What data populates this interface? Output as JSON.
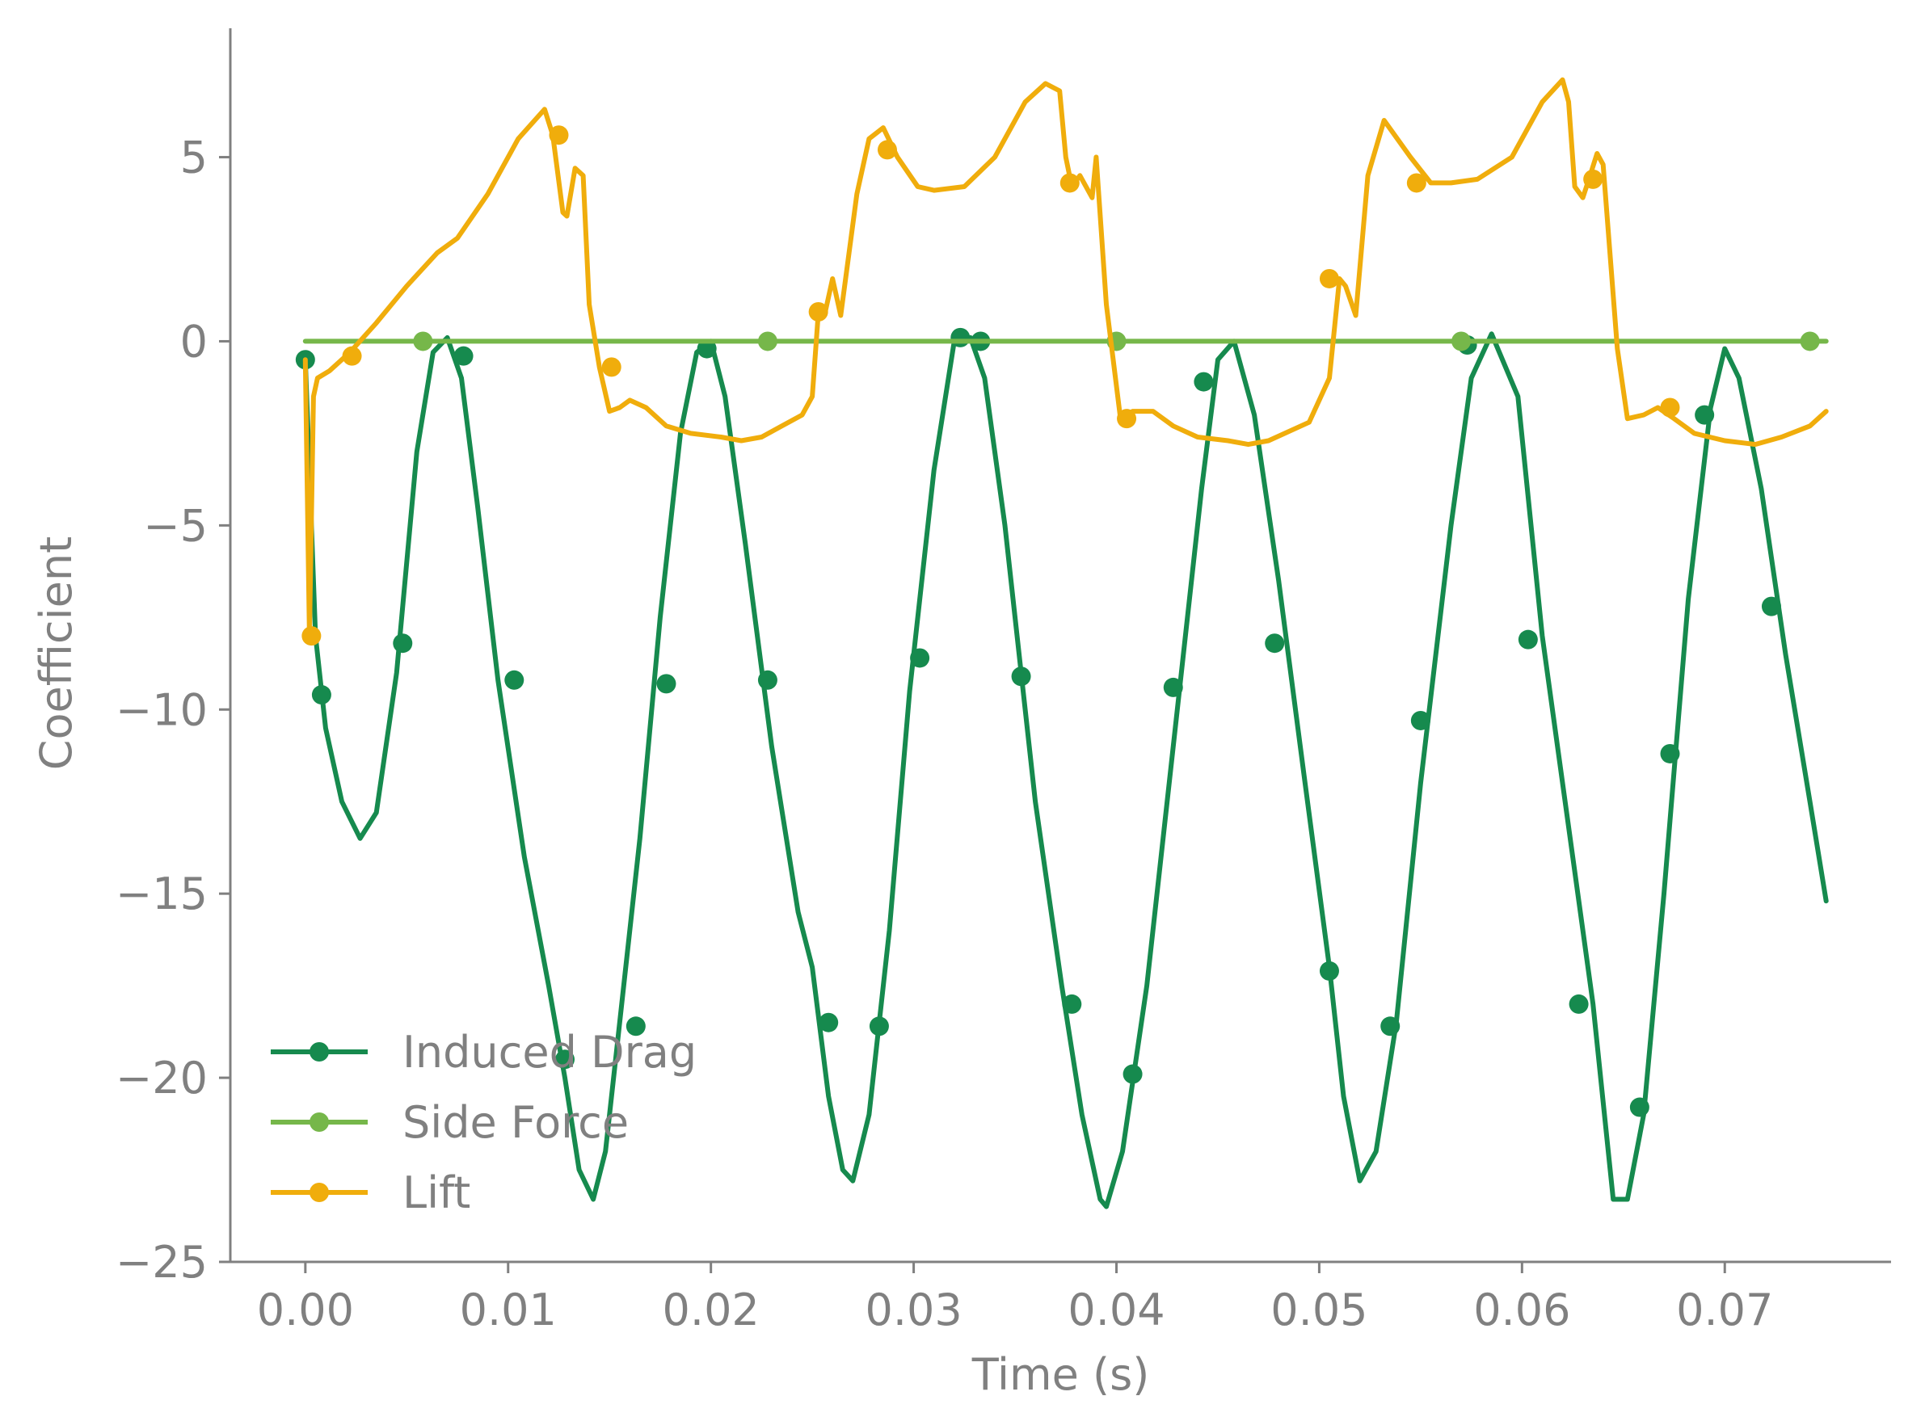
{
  "chart_data": {
    "type": "line",
    "title": "",
    "xlabel": "Time (s)",
    "ylabel": "Coefficient",
    "xlim": [
      -0.0037,
      0.0782
    ],
    "ylim": [
      -25,
      8.5
    ],
    "xticks": [
      0.0,
      0.01,
      0.02,
      0.03,
      0.04,
      0.05,
      0.06,
      0.07
    ],
    "xtick_labels": [
      "0.00",
      "0.01",
      "0.02",
      "0.03",
      "0.04",
      "0.05",
      "0.06",
      "0.07"
    ],
    "yticks": [
      -25,
      -20,
      -15,
      -10,
      -5,
      0,
      5
    ],
    "ytick_labels": [
      "−25",
      "−20",
      "−15",
      "−10",
      "−5",
      "0",
      "5"
    ],
    "grid": false,
    "legend_position": "lower-left",
    "series": [
      {
        "name": "Induced Drag",
        "color": "#168a4e",
        "x": [
          0.0,
          0.0005,
          0.001,
          0.0018,
          0.0027,
          0.0035,
          0.0045,
          0.0055,
          0.0063,
          0.007,
          0.0077,
          0.0085,
          0.0095,
          0.0108,
          0.012,
          0.0128,
          0.0135,
          0.0142,
          0.0148,
          0.0155,
          0.0165,
          0.0175,
          0.0185,
          0.0193,
          0.02,
          0.0207,
          0.0217,
          0.023,
          0.0243,
          0.025,
          0.0258,
          0.0265,
          0.027,
          0.0278,
          0.0288,
          0.0298,
          0.031,
          0.032,
          0.0328,
          0.0335,
          0.0345,
          0.036,
          0.0373,
          0.0383,
          0.0392,
          0.0395,
          0.0403,
          0.0415,
          0.043,
          0.0442,
          0.045,
          0.0458,
          0.0468,
          0.048,
          0.0493,
          0.0505,
          0.0512,
          0.052,
          0.0528,
          0.0538,
          0.055,
          0.0565,
          0.0575,
          0.0585,
          0.0598,
          0.061,
          0.0625,
          0.0635,
          0.0645,
          0.0652,
          0.066,
          0.067,
          0.0682,
          0.0693,
          0.07,
          0.0707,
          0.0718,
          0.073,
          0.0742,
          0.075
        ],
        "values": [
          -0.5,
          -8.0,
          -10.5,
          -12.5,
          -13.5,
          -12.8,
          -9.0,
          -3.0,
          -0.3,
          0.1,
          -1.0,
          -4.5,
          -9.2,
          -14.0,
          -17.5,
          -20.0,
          -22.5,
          -23.3,
          -22.0,
          -18.5,
          -13.5,
          -7.5,
          -2.5,
          -0.3,
          0.0,
          -1.5,
          -5.5,
          -11.0,
          -15.5,
          -17.0,
          -20.5,
          -22.5,
          -22.8,
          -21.0,
          -16.0,
          -9.5,
          -3.5,
          0.0,
          0.1,
          -1.0,
          -5.0,
          -12.5,
          -17.5,
          -21.0,
          -23.3,
          -23.5,
          -22.0,
          -17.5,
          -10.0,
          -4.0,
          -0.5,
          0.0,
          -2.0,
          -6.5,
          -12.0,
          -17.0,
          -20.5,
          -22.8,
          -22.0,
          -18.5,
          -12.0,
          -5.0,
          -1.0,
          0.2,
          -1.5,
          -8.0,
          -14.0,
          -18.0,
          -23.3,
          -23.3,
          -21.0,
          -15.0,
          -7.0,
          -1.8,
          -0.2,
          -1.0,
          -4.0,
          -8.5,
          -12.5,
          -15.2
        ],
        "markers_x": [
          0.0,
          0.0008,
          0.0048,
          0.0078,
          0.0103,
          0.0128,
          0.0163,
          0.0178,
          0.0198,
          0.0228,
          0.0258,
          0.0283,
          0.0303,
          0.0323,
          0.0333,
          0.0353,
          0.0378,
          0.0408,
          0.0428,
          0.0443,
          0.0478,
          0.0505,
          0.0535,
          0.055,
          0.0573,
          0.0603,
          0.0628,
          0.0658,
          0.0673,
          0.069,
          0.0723
        ],
        "markers_y": [
          -0.5,
          -9.6,
          -8.2,
          -0.4,
          -9.2,
          -19.5,
          -18.6,
          -9.3,
          -0.2,
          -9.2,
          -18.5,
          -18.6,
          -8.6,
          0.1,
          0.0,
          -9.1,
          -18.0,
          -19.9,
          -9.4,
          -1.1,
          -8.2,
          -17.1,
          -18.6,
          -10.3,
          -0.1,
          -8.1,
          -18.0,
          -20.8,
          -11.2,
          -2.0,
          -7.2
        ]
      },
      {
        "name": "Side Force",
        "color": "#76b74a",
        "x": [
          0.0,
          0.075
        ],
        "values": [
          0.0,
          0.0
        ],
        "markers_x": [
          0.0058,
          0.0228,
          0.04,
          0.057,
          0.0742
        ],
        "markers_y": [
          0.0,
          0.0,
          0.0,
          0.0,
          0.0
        ]
      },
      {
        "name": "Lift",
        "color": "#f0ad0c",
        "x": [
          0.0,
          0.0002,
          0.0004,
          0.0006,
          0.0012,
          0.0022,
          0.0035,
          0.005,
          0.0065,
          0.0075,
          0.009,
          0.0105,
          0.0118,
          0.0122,
          0.0127,
          0.0129,
          0.0133,
          0.0137,
          0.014,
          0.0145,
          0.015,
          0.0155,
          0.016,
          0.0168,
          0.0178,
          0.019,
          0.0205,
          0.0215,
          0.0225,
          0.0235,
          0.0245,
          0.025,
          0.0253,
          0.0256,
          0.026,
          0.0264,
          0.0272,
          0.0278,
          0.0285,
          0.0292,
          0.0302,
          0.031,
          0.0325,
          0.034,
          0.0355,
          0.0365,
          0.0372,
          0.0375,
          0.0378,
          0.0382,
          0.0388,
          0.039,
          0.0395,
          0.0402,
          0.0408,
          0.0418,
          0.0428,
          0.044,
          0.0455,
          0.0465,
          0.0475,
          0.0495,
          0.0505,
          0.051,
          0.0513,
          0.0518,
          0.0524,
          0.0532,
          0.0545,
          0.0555,
          0.0565,
          0.0578,
          0.0595,
          0.061,
          0.062,
          0.0623,
          0.0626,
          0.063,
          0.0633,
          0.0637,
          0.064,
          0.0647,
          0.0652,
          0.066,
          0.0667,
          0.0675,
          0.0685,
          0.07,
          0.0715,
          0.0728,
          0.0742,
          0.075
        ],
        "values": [
          -0.5,
          -8.0,
          -1.5,
          -1.0,
          -0.8,
          -0.3,
          0.5,
          1.5,
          2.4,
          2.8,
          4.0,
          5.5,
          6.3,
          5.6,
          3.5,
          3.4,
          4.7,
          4.5,
          1.0,
          -0.7,
          -1.9,
          -1.8,
          -1.6,
          -1.8,
          -2.3,
          -2.5,
          -2.6,
          -2.7,
          -2.6,
          -2.3,
          -2.0,
          -1.5,
          0.8,
          0.7,
          1.7,
          0.7,
          4.0,
          5.5,
          5.8,
          5.0,
          4.2,
          4.1,
          4.2,
          5.0,
          6.5,
          7.0,
          6.8,
          5.0,
          4.2,
          4.5,
          3.9,
          5.0,
          1.0,
          -2.1,
          -1.9,
          -1.9,
          -2.3,
          -2.6,
          -2.7,
          -2.8,
          -2.7,
          -2.2,
          -1.0,
          1.7,
          1.5,
          0.7,
          4.5,
          6.0,
          5.0,
          4.3,
          4.3,
          4.4,
          5.0,
          6.5,
          7.1,
          6.5,
          4.2,
          3.9,
          4.4,
          5.1,
          4.8,
          -0.2,
          -2.1,
          -2.0,
          -1.8,
          -2.1,
          -2.5,
          -2.7,
          -2.8,
          -2.6,
          -2.3,
          -1.9
        ],
        "markers_x": [
          0.0003,
          0.0023,
          0.0125,
          0.0151,
          0.0253,
          0.0287,
          0.0377,
          0.0405,
          0.0505,
          0.0548,
          0.0635,
          0.0673
        ],
        "markers_y": [
          -8.0,
          -0.4,
          5.6,
          -0.7,
          0.8,
          5.2,
          4.3,
          -2.1,
          1.7,
          4.3,
          4.4,
          -1.8
        ]
      }
    ]
  }
}
